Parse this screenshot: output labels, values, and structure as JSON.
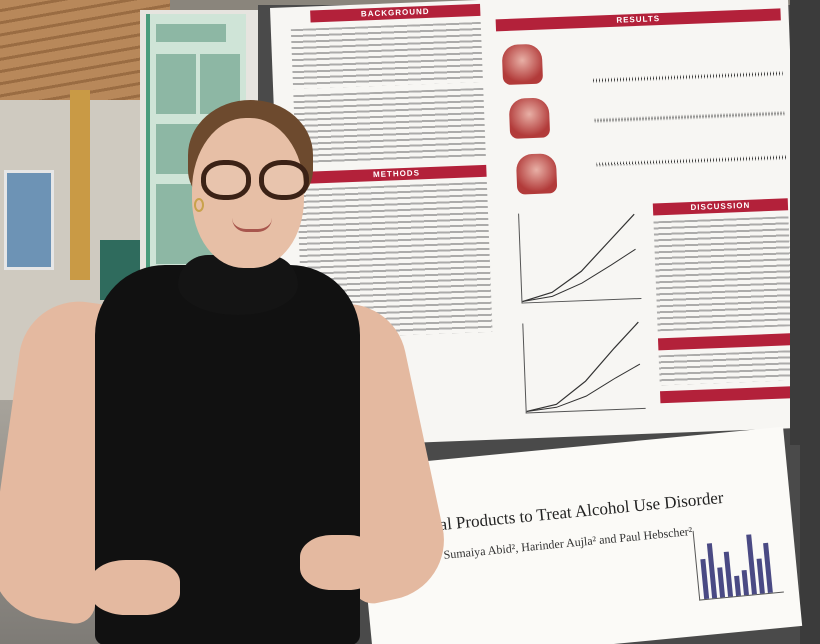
{
  "poster_main": {
    "header_background": "BACKGROUND",
    "header_results": "RESULTS",
    "header_methods": "METHODS",
    "header_discussion": "DISCUSSION"
  },
  "poster_lower": {
    "title": "Natural Products to Treat Alcohol Use Disorder",
    "authors": "Sharan Kaur¹, Sumaiya Abid², Harinder Aujla² and Paul Hebscher²"
  },
  "colors": {
    "poster_accent": "#b3213a",
    "top_clothing": "#111111",
    "green_poster": "#4b9b7c"
  }
}
